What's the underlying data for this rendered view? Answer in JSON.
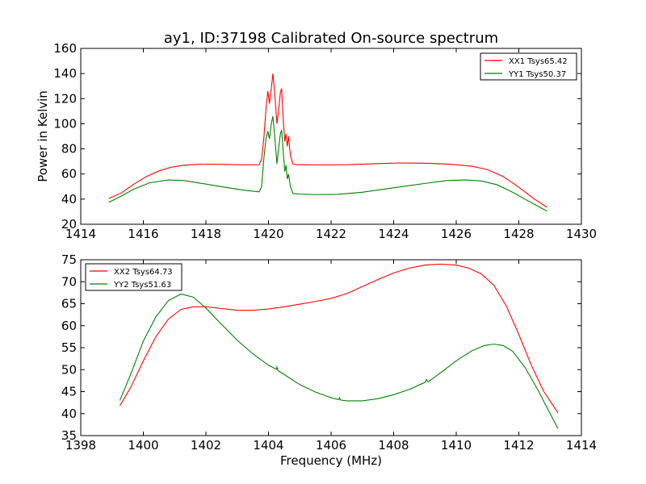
{
  "figure": {
    "title": "ay1, ID:37198 Calibrated On-source spectrum",
    "xlabel": "Frequency (MHz)",
    "ylabel": "Power in Kelvin"
  },
  "chart_data": [
    {
      "type": "line",
      "panel": "top",
      "title": "ay1, ID:37198 Calibrated On-source spectrum",
      "xlabel": "",
      "ylabel": "Power in Kelvin",
      "xlim": [
        1414,
        1430
      ],
      "ylim": [
        20,
        160
      ],
      "xticks": [
        1414,
        1416,
        1418,
        1420,
        1422,
        1424,
        1426,
        1428,
        1430
      ],
      "yticks": [
        20,
        40,
        60,
        80,
        100,
        120,
        140,
        160
      ],
      "legend_position": "top-right",
      "series": [
        {
          "name": "XX1 Tsys65.42",
          "color": "#ff0000",
          "points": [
            [
              1414.9,
              40.5
            ],
            [
              1415.3,
              45
            ],
            [
              1415.7,
              52
            ],
            [
              1416.1,
              58
            ],
            [
              1416.5,
              62.5
            ],
            [
              1416.9,
              65.5
            ],
            [
              1417.3,
              67
            ],
            [
              1417.8,
              67.8
            ],
            [
              1418.5,
              67.7
            ],
            [
              1419.2,
              67.3
            ],
            [
              1419.7,
              67.4
            ],
            [
              1419.78,
              72
            ],
            [
              1419.85,
              88
            ],
            [
              1419.92,
              112
            ],
            [
              1419.98,
              126
            ],
            [
              1420.03,
              116
            ],
            [
              1420.09,
              128
            ],
            [
              1420.14,
              140
            ],
            [
              1420.2,
              124
            ],
            [
              1420.27,
              100
            ],
            [
              1420.33,
              112
            ],
            [
              1420.38,
              125
            ],
            [
              1420.42,
              128
            ],
            [
              1420.47,
              104
            ],
            [
              1420.52,
              86
            ],
            [
              1420.56,
              92
            ],
            [
              1420.6,
              82
            ],
            [
              1420.64,
              90
            ],
            [
              1420.7,
              75
            ],
            [
              1420.78,
              68
            ],
            [
              1420.9,
              67.5
            ],
            [
              1421.5,
              67.2
            ],
            [
              1422.5,
              67.4
            ],
            [
              1423.5,
              68.3
            ],
            [
              1424.2,
              68.8
            ],
            [
              1425,
              68.6
            ],
            [
              1425.8,
              67.8
            ],
            [
              1426.5,
              66.2
            ],
            [
              1427,
              63.5
            ],
            [
              1427.5,
              58
            ],
            [
              1428,
              49.5
            ],
            [
              1428.5,
              40
            ],
            [
              1428.9,
              33.5
            ]
          ]
        },
        {
          "name": "YY1 Tsys50.37",
          "color": "#008000",
          "points": [
            [
              1414.9,
              37.5
            ],
            [
              1415.3,
              42.5
            ],
            [
              1415.7,
              48
            ],
            [
              1416.2,
              53
            ],
            [
              1416.8,
              55.3
            ],
            [
              1417.3,
              54.8
            ],
            [
              1418,
              52
            ],
            [
              1418.6,
              49.5
            ],
            [
              1419.2,
              47.2
            ],
            [
              1419.7,
              45.8
            ],
            [
              1419.78,
              50
            ],
            [
              1419.85,
              72
            ],
            [
              1419.92,
              88
            ],
            [
              1419.98,
              94
            ],
            [
              1420.03,
              88
            ],
            [
              1420.09,
              100
            ],
            [
              1420.14,
              106
            ],
            [
              1420.2,
              90
            ],
            [
              1420.27,
              68
            ],
            [
              1420.33,
              82
            ],
            [
              1420.38,
              92
            ],
            [
              1420.42,
              95
            ],
            [
              1420.47,
              78
            ],
            [
              1420.52,
              62
            ],
            [
              1420.56,
              67
            ],
            [
              1420.6,
              56
            ],
            [
              1420.64,
              60
            ],
            [
              1420.7,
              50
            ],
            [
              1420.78,
              44.5
            ],
            [
              1421,
              44
            ],
            [
              1421.5,
              43.6
            ],
            [
              1422.2,
              43.8
            ],
            [
              1423,
              45.5
            ],
            [
              1424,
              49
            ],
            [
              1425,
              52.5
            ],
            [
              1425.7,
              54.8
            ],
            [
              1426.3,
              55.3
            ],
            [
              1426.8,
              54.5
            ],
            [
              1427.3,
              51.5
            ],
            [
              1427.8,
              45.5
            ],
            [
              1428.3,
              38.5
            ],
            [
              1428.9,
              30.5
            ]
          ]
        }
      ]
    },
    {
      "type": "line",
      "panel": "bottom",
      "title": "",
      "xlabel": "Frequency (MHz)",
      "ylabel": "",
      "xlim": [
        1398,
        1414
      ],
      "ylim": [
        35,
        75
      ],
      "xticks": [
        1398,
        1400,
        1402,
        1404,
        1406,
        1408,
        1410,
        1412,
        1414
      ],
      "yticks": [
        35,
        40,
        45,
        50,
        55,
        60,
        65,
        70,
        75
      ],
      "legend_position": "top-left",
      "series": [
        {
          "name": "XX2 Tsys64.73",
          "color": "#ff0000",
          "points": [
            [
              1399.25,
              41.8
            ],
            [
              1399.6,
              46
            ],
            [
              1400,
              52
            ],
            [
              1400.4,
              57.5
            ],
            [
              1400.8,
              61.5
            ],
            [
              1401.2,
              63.7
            ],
            [
              1401.6,
              64.3
            ],
            [
              1402,
              64.3
            ],
            [
              1402.5,
              63.9
            ],
            [
              1403,
              63.5
            ],
            [
              1403.5,
              63.5
            ],
            [
              1404,
              63.8
            ],
            [
              1404.5,
              64.3
            ],
            [
              1405,
              64.9
            ],
            [
              1405.5,
              65.5
            ],
            [
              1406,
              66.2
            ],
            [
              1406.5,
              67.3
            ],
            [
              1407,
              68.9
            ],
            [
              1407.5,
              70.5
            ],
            [
              1408,
              72
            ],
            [
              1408.5,
              73.1
            ],
            [
              1409,
              73.8
            ],
            [
              1409.5,
              74
            ],
            [
              1410,
              73.8
            ],
            [
              1410.4,
              73.1
            ],
            [
              1410.8,
              71.8
            ],
            [
              1411.2,
              69.2
            ],
            [
              1411.6,
              64.5
            ],
            [
              1412,
              58
            ],
            [
              1412.4,
              51
            ],
            [
              1412.8,
              45
            ],
            [
              1413.25,
              40.2
            ]
          ]
        },
        {
          "name": "YY2 Tsys51.63",
          "color": "#008000",
          "points": [
            [
              1399.25,
              43
            ],
            [
              1399.6,
              49
            ],
            [
              1400,
              56.5
            ],
            [
              1400.4,
              62
            ],
            [
              1400.8,
              65.7
            ],
            [
              1401.2,
              67.2
            ],
            [
              1401.6,
              66.5
            ],
            [
              1402,
              64
            ],
            [
              1402.5,
              60.3
            ],
            [
              1403,
              56.7
            ],
            [
              1403.5,
              53.6
            ],
            [
              1404,
              51
            ],
            [
              1404.25,
              50.1
            ],
            [
              1404.27,
              50.6
            ],
            [
              1404.3,
              49.8
            ],
            [
              1404.5,
              48.9
            ],
            [
              1405,
              46.6
            ],
            [
              1405.5,
              44.9
            ],
            [
              1406,
              43.6
            ],
            [
              1406.25,
              43.2
            ],
            [
              1406.27,
              43.6
            ],
            [
              1406.3,
              43.1
            ],
            [
              1406.5,
              42.9
            ],
            [
              1407,
              42.9
            ],
            [
              1407.5,
              43.4
            ],
            [
              1408,
              44.3
            ],
            [
              1408.5,
              45.5
            ],
            [
              1409,
              47.1
            ],
            [
              1409.05,
              47.8
            ],
            [
              1409.1,
              47.2
            ],
            [
              1409.5,
              49.3
            ],
            [
              1410,
              52
            ],
            [
              1410.5,
              54.3
            ],
            [
              1410.9,
              55.5
            ],
            [
              1411.2,
              55.8
            ],
            [
              1411.5,
              55.5
            ],
            [
              1411.8,
              54.2
            ],
            [
              1412.2,
              50.5
            ],
            [
              1412.6,
              45.5
            ],
            [
              1413,
              40
            ],
            [
              1413.25,
              36.6
            ]
          ]
        }
      ]
    }
  ]
}
